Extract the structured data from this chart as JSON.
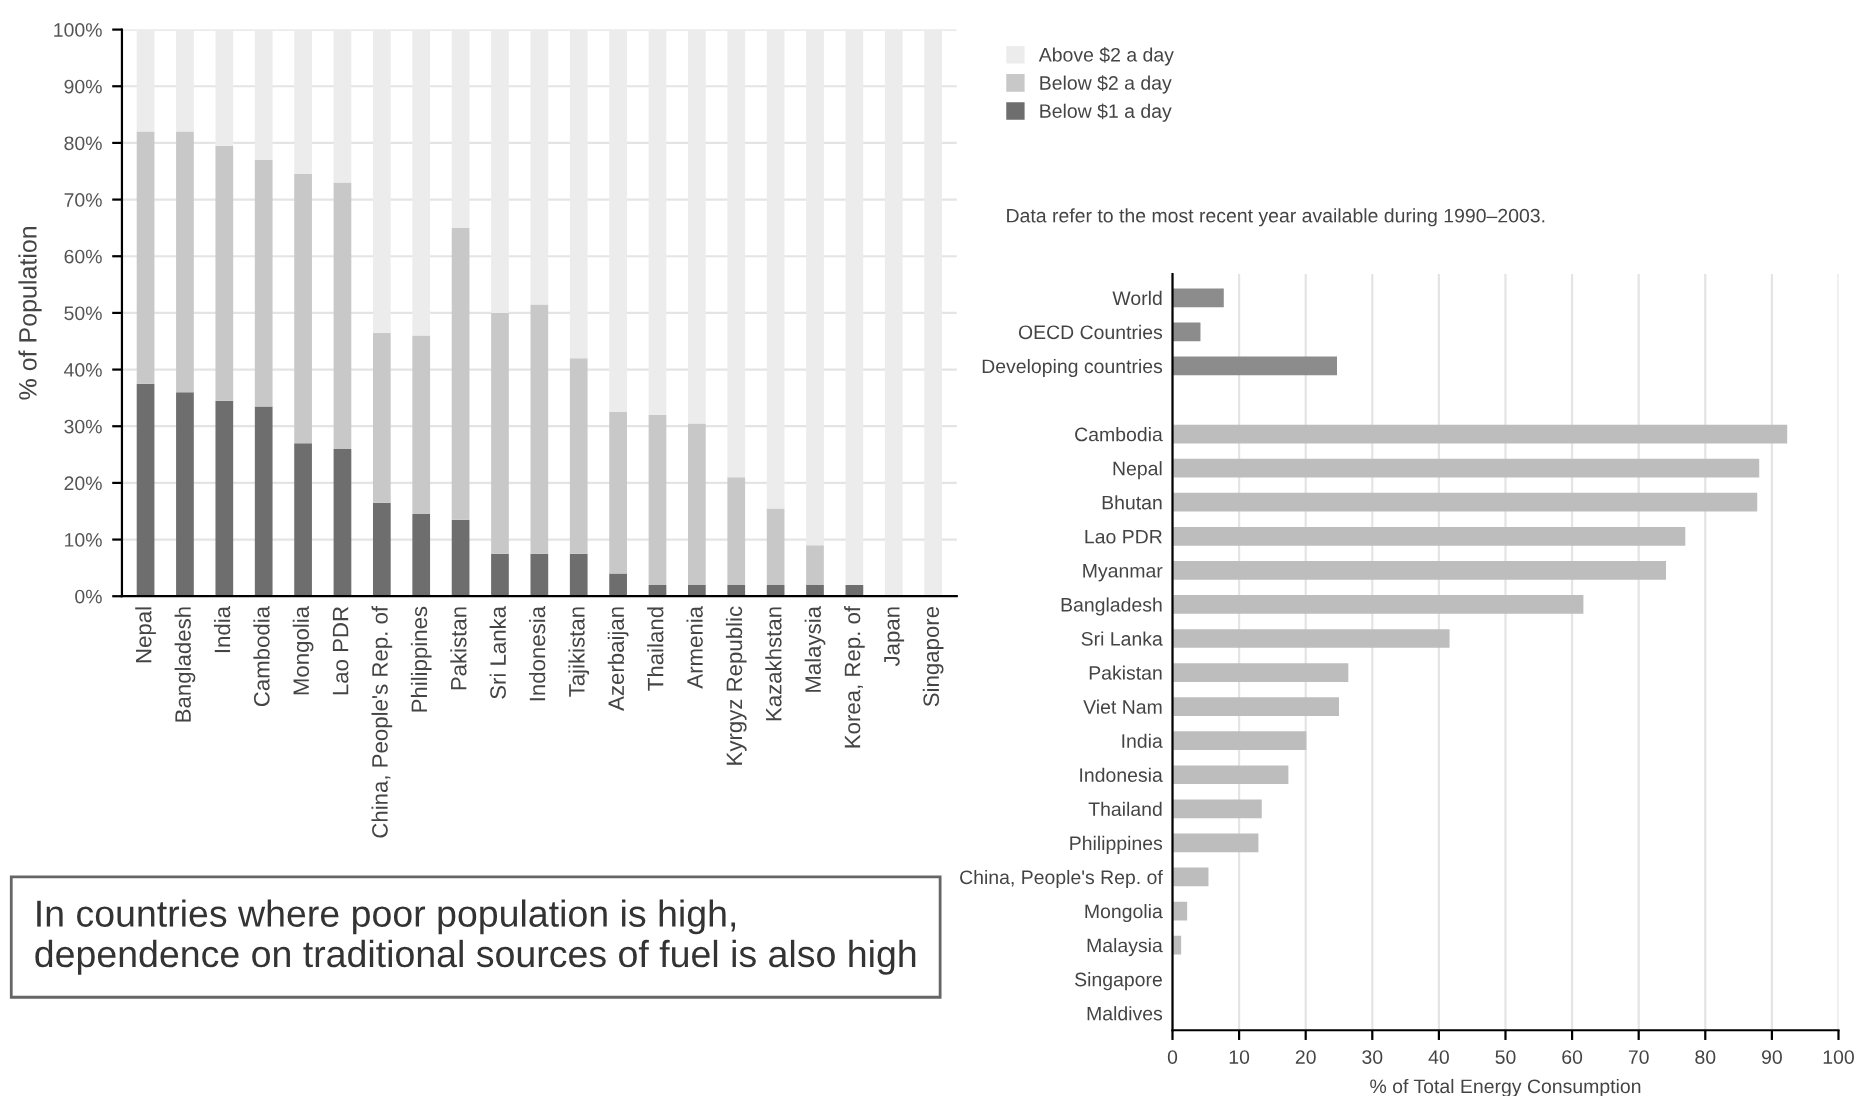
{
  "chart_data": [
    {
      "type": "bar",
      "stacked": true,
      "ylabel": "% of Population",
      "categories": [
        "Nepal",
        "Bangladesh",
        "India",
        "Cambodia",
        "Mongolia",
        "Lao PDR",
        "China, People's Rep. of",
        "Philippines",
        "Pakistan",
        "Sri Lanka",
        "Indonesia",
        "Tajikistan",
        "Azerbaijan",
        "Thailand",
        "Armenia",
        "Kyrgyz Republic",
        "Kazakhstan",
        "Malaysia",
        "Korea, Rep. of",
        "Japan",
        "Singapore"
      ],
      "series": [
        {
          "name": "Below $1 a day",
          "color": "#6e6e6e",
          "values": [
            37.5,
            36,
            34.5,
            33.5,
            27,
            26,
            16.5,
            14.5,
            13.5,
            7.5,
            7.5,
            7.5,
            4,
            2,
            2,
            2,
            2,
            2,
            2,
            0,
            0
          ]
        },
        {
          "name": "Below $2 a day",
          "color": "#c8c8c8",
          "values": [
            44.5,
            46,
            45,
            43.5,
            47.5,
            47,
            30,
            31.5,
            51.5,
            42.5,
            44,
            34.5,
            28.5,
            30,
            28.5,
            19,
            13.5,
            7,
            0,
            0,
            0
          ]
        },
        {
          "name": "Above $2 a day",
          "color": "#ececec",
          "values": [
            18,
            18,
            20.5,
            23,
            25.5,
            27,
            53.5,
            54,
            35,
            50,
            48.5,
            58,
            67.5,
            68,
            69.5,
            79,
            84.5,
            91,
            98,
            100,
            100
          ]
        }
      ],
      "ylim": [
        0,
        100
      ],
      "yticks": [
        {
          "value": 0,
          "label": "0%"
        },
        {
          "value": 10,
          "label": "10%"
        },
        {
          "value": 20,
          "label": "20%"
        },
        {
          "value": 30,
          "label": "30%"
        },
        {
          "value": 40,
          "label": "40%"
        },
        {
          "value": 50,
          "label": "50%"
        },
        {
          "value": 60,
          "label": "60%"
        },
        {
          "value": 70,
          "label": "70%"
        },
        {
          "value": 80,
          "label": "80%"
        },
        {
          "value": 90,
          "label": "90%"
        },
        {
          "value": 100,
          "label": "100%"
        }
      ],
      "grid": "y",
      "legend": "right",
      "annotations": [
        "Data refer to the most recent year available during 1990–2003.",
        "In countries where poor population is high, dependence on traditional sources of fuel is also high"
      ]
    },
    {
      "type": "bar",
      "orientation": "horizontal",
      "xlabel": "% of Total Energy Consumption",
      "categories": [
        "World",
        "OECD Countries",
        "Developing countries",
        null,
        "Cambodia",
        "Nepal",
        "Bhutan",
        "Lao PDR",
        "Myanmar",
        "Bangladesh",
        "Sri Lanka",
        "Pakistan",
        "Viet Nam",
        "India",
        "Indonesia",
        "Thailand",
        "Philippines",
        "China, People's Rep. of",
        "Mongolia",
        "Malaysia",
        "Singapore",
        "Maldives"
      ],
      "values": [
        7.7,
        4.2,
        24.7,
        null,
        92.3,
        88.1,
        87.8,
        77,
        74.1,
        61.7,
        41.6,
        26.4,
        25,
        20.1,
        17.4,
        13.4,
        12.9,
        5.4,
        2.2,
        1.3,
        0,
        0
      ],
      "colors": [
        "#8c8c8c",
        "#8c8c8c",
        "#8c8c8c",
        "#bdbdbd",
        "#bdbdbd",
        "#bdbdbd",
        "#bdbdbd",
        "#bdbdbd",
        "#bdbdbd",
        "#bdbdbd",
        "#bdbdbd",
        "#bdbdbd",
        "#bdbdbd",
        "#bdbdbd",
        "#bdbdbd",
        "#bdbdbd",
        "#bdbdbd",
        "#bdbdbd",
        "#bdbdbd",
        "#bdbdbd",
        "#bdbdbd",
        "#bdbdbd"
      ],
      "xlim": [
        0,
        100
      ],
      "xticks": [
        0,
        10,
        20,
        30,
        40,
        50,
        60,
        70,
        80,
        90,
        100
      ],
      "grid": "x"
    }
  ]
}
